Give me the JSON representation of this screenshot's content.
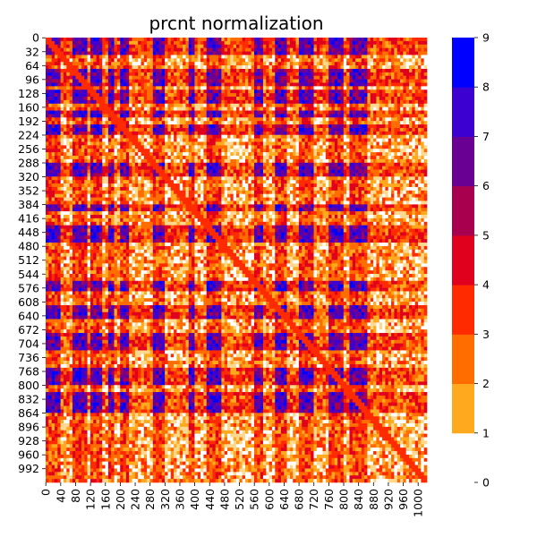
{
  "chart_data": {
    "type": "heatmap",
    "title": "prcnt normalization",
    "xlabel": "",
    "ylabel": "",
    "matrix_size": 1024,
    "x_tick_labels": [
      "0",
      "40",
      "80",
      "120",
      "160",
      "200",
      "240",
      "280",
      "320",
      "360",
      "400",
      "440",
      "480",
      "520",
      "560",
      "600",
      "640",
      "680",
      "720",
      "760",
      "800",
      "840",
      "880",
      "920",
      "960",
      "1000"
    ],
    "y_tick_labels": [
      "0",
      "32",
      "64",
      "96",
      "128",
      "160",
      "192",
      "224",
      "256",
      "288",
      "320",
      "352",
      "384",
      "416",
      "448",
      "480",
      "512",
      "544",
      "576",
      "608",
      "640",
      "672",
      "704",
      "736",
      "768",
      "800",
      "832",
      "864",
      "896",
      "928",
      "960",
      "992"
    ],
    "colorbar": {
      "tick_labels": [
        "0",
        "1",
        "2",
        "3",
        "4",
        "5",
        "6",
        "7",
        "8",
        "9"
      ],
      "bins": [
        {
          "value": 0,
          "color": "#ffffff"
        },
        {
          "value": 1,
          "color": "#ffd88f"
        },
        {
          "value": 2,
          "color": "#ffaa1e"
        },
        {
          "value": 3,
          "color": "#ff6d00"
        },
        {
          "value": 4,
          "color": "#ff2a00"
        },
        {
          "value": 5,
          "color": "#e0001e"
        },
        {
          "value": 6,
          "color": "#a8004f"
        },
        {
          "value": 7,
          "color": "#6a0093"
        },
        {
          "value": 8,
          "color": "#3c00d0"
        },
        {
          "value": 9,
          "color": "#0000ff"
        }
      ]
    },
    "block_bands_high": [
      [
        0,
        40
      ],
      [
        75,
        110
      ],
      [
        120,
        150
      ],
      [
        170,
        185
      ],
      [
        200,
        220
      ],
      [
        290,
        320
      ],
      [
        385,
        400
      ],
      [
        430,
        470
      ],
      [
        560,
        580
      ],
      [
        620,
        650
      ],
      [
        680,
        720
      ],
      [
        760,
        800
      ],
      [
        820,
        860
      ]
    ],
    "diagonal": true
  }
}
